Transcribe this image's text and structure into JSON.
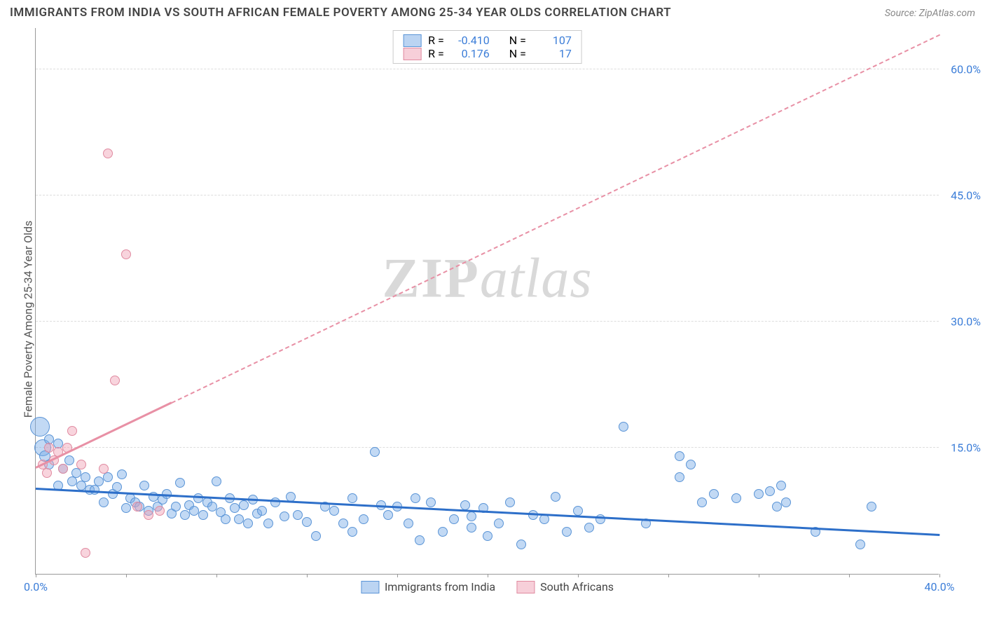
{
  "header": {
    "title": "IMMIGRANTS FROM INDIA VS SOUTH AFRICAN FEMALE POVERTY AMONG 25-34 YEAR OLDS CORRELATION CHART",
    "source": "Source: ZipAtlas.com"
  },
  "y_axis_label": "Female Poverty Among 25-34 Year Olds",
  "watermark": {
    "part1": "ZIP",
    "part2": "atlas"
  },
  "chart": {
    "type": "scatter",
    "background_color": "#ffffff",
    "grid_color": "#dddddd",
    "axis_color": "#999999",
    "xlim": [
      0,
      40
    ],
    "ylim": [
      0,
      65
    ],
    "x_ticks": {
      "positions": [
        0,
        4,
        8,
        12,
        16,
        20,
        24,
        28,
        32,
        36,
        40
      ],
      "labels": [
        "0.0%",
        "",
        "",
        "",
        "",
        "",
        "",
        "",
        "",
        "",
        "40.0%"
      ]
    },
    "y_ticks_right": [
      {
        "value": 15,
        "label": "15.0%"
      },
      {
        "value": 30,
        "label": "30.0%"
      },
      {
        "value": 45,
        "label": "45.0%"
      },
      {
        "value": 60,
        "label": "60.0%"
      }
    ],
    "gridlines_y": [
      0,
      15,
      30,
      45,
      60
    ],
    "series": [
      {
        "name": "Immigrants from India",
        "color": "#7aaae6",
        "border_color": "#5a94d6",
        "marker_radius": 7,
        "trend": {
          "x1": 0,
          "y1": 10.0,
          "x2": 40,
          "y2": 4.5,
          "solid_until_x": 40,
          "dashed": false,
          "line_color": "#2d6fc9"
        },
        "stats": {
          "R": "-0.410",
          "N": "107"
        },
        "points": [
          [
            0.2,
            17.5,
            14
          ],
          [
            0.3,
            15.0,
            12
          ],
          [
            0.4,
            14.0,
            8
          ],
          [
            0.6,
            16.0,
            7
          ],
          [
            0.6,
            13.0,
            7
          ],
          [
            1.0,
            15.5,
            7
          ],
          [
            1.0,
            10.5,
            7
          ],
          [
            1.2,
            12.5,
            7
          ],
          [
            1.5,
            13.5,
            7
          ],
          [
            1.6,
            11.0,
            7
          ],
          [
            1.8,
            12.0,
            7
          ],
          [
            2.0,
            10.5,
            7
          ],
          [
            2.2,
            11.5,
            7
          ],
          [
            2.4,
            10.0,
            7
          ],
          [
            2.6,
            10.0,
            7
          ],
          [
            2.8,
            11.0,
            7
          ],
          [
            3.0,
            8.5,
            7
          ],
          [
            3.2,
            11.5,
            7
          ],
          [
            3.4,
            9.5,
            7
          ],
          [
            3.6,
            10.3,
            7
          ],
          [
            3.8,
            11.8,
            7
          ],
          [
            4.0,
            7.8,
            7
          ],
          [
            4.2,
            9.0,
            7
          ],
          [
            4.4,
            8.5,
            7
          ],
          [
            4.6,
            8.0,
            7
          ],
          [
            4.8,
            10.5,
            7
          ],
          [
            5.0,
            7.5,
            7
          ],
          [
            5.2,
            9.2,
            7
          ],
          [
            5.4,
            8.0,
            7
          ],
          [
            5.6,
            8.8,
            7
          ],
          [
            5.8,
            9.5,
            7
          ],
          [
            6.0,
            7.2,
            7
          ],
          [
            6.2,
            8.0,
            7
          ],
          [
            6.4,
            10.8,
            7
          ],
          [
            6.6,
            7.0,
            7
          ],
          [
            6.8,
            8.2,
            7
          ],
          [
            7.0,
            7.5,
            7
          ],
          [
            7.2,
            9.0,
            7
          ],
          [
            7.4,
            7.0,
            7
          ],
          [
            7.6,
            8.5,
            7
          ],
          [
            7.8,
            8.0,
            7
          ],
          [
            8.0,
            11.0,
            7
          ],
          [
            8.2,
            7.3,
            7
          ],
          [
            8.4,
            6.5,
            7
          ],
          [
            8.6,
            9.0,
            7
          ],
          [
            8.8,
            7.8,
            7
          ],
          [
            9.0,
            6.5,
            7
          ],
          [
            9.2,
            8.2,
            7
          ],
          [
            9.4,
            6.0,
            7
          ],
          [
            9.6,
            8.8,
            7
          ],
          [
            9.8,
            7.2,
            7
          ],
          [
            10.0,
            7.5,
            7
          ],
          [
            10.3,
            6.0,
            7
          ],
          [
            10.6,
            8.5,
            7
          ],
          [
            11.0,
            6.8,
            7
          ],
          [
            11.3,
            9.2,
            7
          ],
          [
            11.6,
            7.0,
            7
          ],
          [
            12.0,
            6.2,
            7
          ],
          [
            12.4,
            4.5,
            7
          ],
          [
            12.8,
            8.0,
            7
          ],
          [
            13.2,
            7.5,
            7
          ],
          [
            13.6,
            6.0,
            7
          ],
          [
            14.0,
            9.0,
            7
          ],
          [
            14.0,
            5.0,
            7
          ],
          [
            14.5,
            6.5,
            7
          ],
          [
            15.0,
            14.5,
            7
          ],
          [
            15.3,
            8.2,
            7
          ],
          [
            15.6,
            7.0,
            7
          ],
          [
            16.0,
            8.0,
            7
          ],
          [
            16.5,
            6.0,
            7
          ],
          [
            16.8,
            9.0,
            7
          ],
          [
            17.0,
            4.0,
            7
          ],
          [
            17.5,
            8.5,
            7
          ],
          [
            18.0,
            5.0,
            7
          ],
          [
            18.5,
            6.5,
            7
          ],
          [
            19.0,
            8.2,
            7
          ],
          [
            19.3,
            5.5,
            7
          ],
          [
            19.3,
            6.8,
            7
          ],
          [
            19.8,
            7.8,
            7
          ],
          [
            20.0,
            4.5,
            7
          ],
          [
            20.5,
            6.0,
            7
          ],
          [
            21.0,
            8.5,
            7
          ],
          [
            21.5,
            3.5,
            7
          ],
          [
            22.0,
            7.0,
            7
          ],
          [
            22.5,
            6.5,
            7
          ],
          [
            23.0,
            9.2,
            7
          ],
          [
            23.5,
            5.0,
            7
          ],
          [
            24.0,
            7.5,
            7
          ],
          [
            24.5,
            5.5,
            7
          ],
          [
            25.0,
            6.5,
            7
          ],
          [
            26.0,
            17.5,
            7
          ],
          [
            27.0,
            6.0,
            7
          ],
          [
            28.5,
            14.0,
            7
          ],
          [
            28.5,
            11.5,
            7
          ],
          [
            29.0,
            13.0,
            7
          ],
          [
            29.5,
            8.5,
            7
          ],
          [
            30.0,
            9.5,
            7
          ],
          [
            31.0,
            9.0,
            7
          ],
          [
            32.0,
            9.5,
            7
          ],
          [
            32.5,
            9.8,
            7
          ],
          [
            32.8,
            8.0,
            7
          ],
          [
            33.0,
            10.5,
            7
          ],
          [
            33.2,
            8.5,
            7
          ],
          [
            34.5,
            5.0,
            7
          ],
          [
            36.5,
            3.5,
            7
          ],
          [
            37.0,
            8.0,
            7
          ]
        ]
      },
      {
        "name": "South Africans",
        "color": "#f0a0b4",
        "border_color": "#e08aa0",
        "marker_radius": 7,
        "trend": {
          "x1": 0,
          "y1": 12.5,
          "x2": 40,
          "y2": 64.0,
          "solid_until_x": 6.0,
          "dashed": true,
          "line_color": "#e890a5"
        },
        "stats": {
          "R": "0.176",
          "N": "17"
        },
        "points": [
          [
            0.3,
            13.0,
            7
          ],
          [
            0.5,
            12.0,
            7
          ],
          [
            0.6,
            15.0,
            7
          ],
          [
            0.8,
            13.5,
            7
          ],
          [
            1.0,
            14.5,
            7
          ],
          [
            1.2,
            12.5,
            7
          ],
          [
            1.4,
            15.0,
            7
          ],
          [
            1.6,
            17.0,
            7
          ],
          [
            2.0,
            13.0,
            7
          ],
          [
            2.2,
            2.5,
            7
          ],
          [
            3.0,
            12.5,
            7
          ],
          [
            3.2,
            50.0,
            7
          ],
          [
            3.5,
            23.0,
            7
          ],
          [
            4.0,
            38.0,
            7
          ],
          [
            4.5,
            8.0,
            7
          ],
          [
            5.0,
            7.0,
            7
          ],
          [
            5.5,
            7.5,
            7
          ]
        ]
      }
    ]
  },
  "stats_legend": {
    "R_label": "R =",
    "N_label": "N ="
  }
}
